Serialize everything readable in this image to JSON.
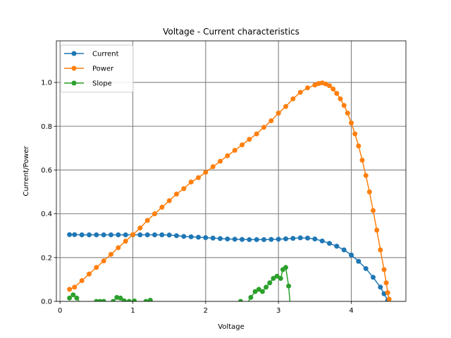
{
  "chart_data": {
    "type": "line",
    "title": "Voltage - Current characteristics",
    "xlabel": "Voltage",
    "ylabel": "Current/Power",
    "xlim": [
      -0.05,
      4.75
    ],
    "ylim": [
      0.0,
      1.19
    ],
    "xticks": [
      0,
      1,
      2,
      3,
      4
    ],
    "yticks": [
      0.0,
      0.2,
      0.4,
      0.6,
      0.8,
      1.0
    ],
    "xtick_labels": [
      "0",
      "1",
      "2",
      "3",
      "4"
    ],
    "ytick_labels": [
      "0.0",
      "0.2",
      "0.4",
      "0.6",
      "0.8",
      "1.0"
    ],
    "grid": true,
    "legend": "top-left",
    "series": [
      {
        "name": "Current",
        "color": "#1f77b4",
        "marker": "circle",
        "points": [
          [
            0.13,
            0.305
          ],
          [
            0.2,
            0.305
          ],
          [
            0.3,
            0.304
          ],
          [
            0.4,
            0.304
          ],
          [
            0.5,
            0.304
          ],
          [
            0.6,
            0.304
          ],
          [
            0.7,
            0.304
          ],
          [
            0.8,
            0.304
          ],
          [
            0.9,
            0.304
          ],
          [
            1.0,
            0.304
          ],
          [
            1.1,
            0.304
          ],
          [
            1.2,
            0.304
          ],
          [
            1.3,
            0.304
          ],
          [
            1.4,
            0.304
          ],
          [
            1.5,
            0.303
          ],
          [
            1.6,
            0.3
          ],
          [
            1.7,
            0.297
          ],
          [
            1.8,
            0.295
          ],
          [
            1.9,
            0.293
          ],
          [
            2.0,
            0.291
          ],
          [
            2.1,
            0.289
          ],
          [
            2.2,
            0.287
          ],
          [
            2.3,
            0.285
          ],
          [
            2.4,
            0.284
          ],
          [
            2.5,
            0.283
          ],
          [
            2.6,
            0.282
          ],
          [
            2.7,
            0.282
          ],
          [
            2.8,
            0.282
          ],
          [
            2.9,
            0.283
          ],
          [
            3.0,
            0.284
          ],
          [
            3.1,
            0.286
          ],
          [
            3.2,
            0.288
          ],
          [
            3.3,
            0.29
          ],
          [
            3.4,
            0.289
          ],
          [
            3.5,
            0.285
          ],
          [
            3.6,
            0.276
          ],
          [
            3.7,
            0.265
          ],
          [
            3.8,
            0.252
          ],
          [
            3.9,
            0.235
          ],
          [
            4.0,
            0.212
          ],
          [
            4.1,
            0.183
          ],
          [
            4.2,
            0.15
          ],
          [
            4.3,
            0.11
          ],
          [
            4.4,
            0.065
          ],
          [
            4.45,
            0.035
          ],
          [
            4.5,
            0.005
          ]
        ]
      },
      {
        "name": "Power",
        "color": "#ff7f0e",
        "marker": "circle",
        "points": [
          [
            0.13,
            0.055
          ],
          [
            0.2,
            0.065
          ],
          [
            0.3,
            0.095
          ],
          [
            0.4,
            0.125
          ],
          [
            0.5,
            0.155
          ],
          [
            0.6,
            0.185
          ],
          [
            0.7,
            0.215
          ],
          [
            0.8,
            0.245
          ],
          [
            0.9,
            0.275
          ],
          [
            1.0,
            0.305
          ],
          [
            1.1,
            0.335
          ],
          [
            1.2,
            0.37
          ],
          [
            1.3,
            0.4
          ],
          [
            1.4,
            0.43
          ],
          [
            1.5,
            0.46
          ],
          [
            1.6,
            0.49
          ],
          [
            1.7,
            0.515
          ],
          [
            1.8,
            0.545
          ],
          [
            1.9,
            0.565
          ],
          [
            2.0,
            0.59
          ],
          [
            2.1,
            0.615
          ],
          [
            2.2,
            0.64
          ],
          [
            2.3,
            0.665
          ],
          [
            2.4,
            0.69
          ],
          [
            2.5,
            0.715
          ],
          [
            2.6,
            0.74
          ],
          [
            2.7,
            0.765
          ],
          [
            2.8,
            0.795
          ],
          [
            2.9,
            0.825
          ],
          [
            3.0,
            0.86
          ],
          [
            3.1,
            0.89
          ],
          [
            3.2,
            0.925
          ],
          [
            3.3,
            0.955
          ],
          [
            3.4,
            0.975
          ],
          [
            3.5,
            0.988
          ],
          [
            3.55,
            0.995
          ],
          [
            3.6,
            0.998
          ],
          [
            3.65,
            0.993
          ],
          [
            3.7,
            0.985
          ],
          [
            3.75,
            0.97
          ],
          [
            3.8,
            0.95
          ],
          [
            3.85,
            0.925
          ],
          [
            3.9,
            0.895
          ],
          [
            3.95,
            0.86
          ],
          [
            4.0,
            0.815
          ],
          [
            4.05,
            0.765
          ],
          [
            4.1,
            0.71
          ],
          [
            4.15,
            0.645
          ],
          [
            4.2,
            0.575
          ],
          [
            4.25,
            0.5
          ],
          [
            4.3,
            0.415
          ],
          [
            4.35,
            0.325
          ],
          [
            4.4,
            0.235
          ],
          [
            4.45,
            0.145
          ],
          [
            4.48,
            0.085
          ],
          [
            4.5,
            0.04
          ],
          [
            4.52,
            0.01
          ]
        ]
      },
      {
        "name": "Slope",
        "color": "#2ca02c",
        "marker": "circle",
        "points": [
          [
            0.13,
            0.015
          ],
          [
            0.18,
            0.03
          ],
          [
            0.23,
            0.015
          ],
          [
            0.28,
            -0.01
          ],
          [
            0.35,
            -0.03
          ],
          [
            0.45,
            -0.02
          ],
          [
            0.5,
            0.0
          ],
          [
            0.55,
            0.0
          ],
          [
            0.6,
            0.0
          ],
          [
            0.68,
            -0.02
          ],
          [
            0.73,
            0.0
          ],
          [
            0.78,
            0.018
          ],
          [
            0.83,
            0.015
          ],
          [
            0.88,
            0.003
          ],
          [
            0.95,
            0.0
          ],
          [
            1.02,
            0.002
          ],
          [
            1.08,
            -0.01
          ],
          [
            1.12,
            -0.02
          ],
          [
            1.18,
            0.0
          ],
          [
            1.24,
            0.005
          ],
          [
            1.3,
            -0.01
          ],
          [
            1.4,
            -0.03
          ],
          [
            1.8,
            -0.03
          ],
          [
            2.3,
            -0.03
          ],
          [
            2.48,
            0.0
          ],
          [
            2.55,
            -0.02
          ],
          [
            2.62,
            0.018
          ],
          [
            2.68,
            0.045
          ],
          [
            2.73,
            0.055
          ],
          [
            2.78,
            0.045
          ],
          [
            2.83,
            0.065
          ],
          [
            2.88,
            0.085
          ],
          [
            2.93,
            0.105
          ],
          [
            2.98,
            0.115
          ],
          [
            3.03,
            0.105
          ],
          [
            3.06,
            0.145
          ],
          [
            3.1,
            0.155
          ],
          [
            3.14,
            0.07
          ],
          [
            3.16,
            -0.01
          ]
        ]
      }
    ]
  }
}
